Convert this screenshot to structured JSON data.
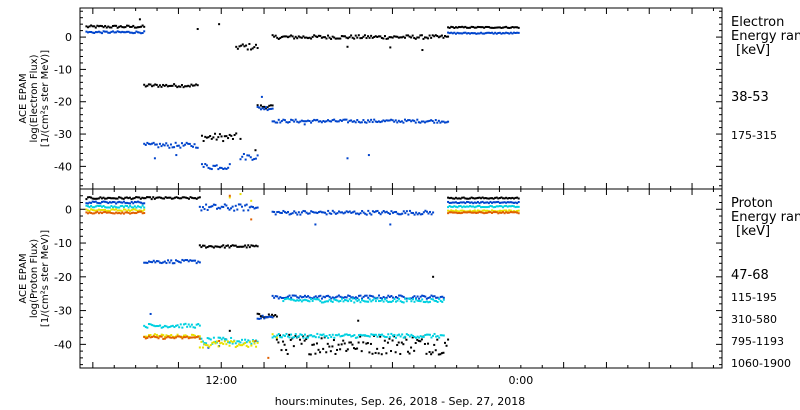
{
  "chart_data": [
    {
      "type": "scatter",
      "ylabel_lines": [
        "ACE EPAM",
        "log(Electron Flux)",
        "[1/(cm²s ster MeV)]"
      ],
      "ylim": [
        -47,
        9
      ],
      "yticks": [
        0,
        -10,
        -20,
        -30,
        -40
      ],
      "xlim": [
        0,
        30
      ],
      "legend_title": [
        "Electron",
        "Energy ran",
        "[keV]"
      ],
      "series": [
        {
          "name": "38-53",
          "color": "#000000",
          "segments": [
            {
              "x0": 0.3,
              "x1": 3.0,
              "y": 3.2,
              "jitter": 0.4
            },
            {
              "x0": 3.0,
              "x1": 5.5,
              "y": -15.0,
              "jitter": 0.5
            },
            {
              "x0": 5.7,
              "x1": 7.3,
              "y": -31.0,
              "jitter": 1.2
            },
            {
              "x0": 7.3,
              "x1": 8.3,
              "y": -3.0,
              "jitter": 1.0
            },
            {
              "x0": 8.3,
              "x1": 9.0,
              "y": -21.5,
              "jitter": 0.6
            },
            {
              "x0": 9.0,
              "x1": 17.2,
              "y": 0.0,
              "jitter": 0.6
            },
            {
              "x0": 17.2,
              "x1": 20.5,
              "y": 3.0,
              "jitter": 0.2
            }
          ],
          "extra_points": [
            [
              2.8,
              5.5
            ],
            [
              5.5,
              2.5
            ],
            [
              6.5,
              4.0
            ],
            [
              7.5,
              -31.5
            ],
            [
              8.2,
              -35.0
            ],
            [
              12.5,
              -3.0
            ],
            [
              14.5,
              -3.2
            ],
            [
              16.0,
              -4.0
            ]
          ]
        },
        {
          "name": "175-315",
          "color": "#0044cc",
          "segments": [
            {
              "x0": 0.3,
              "x1": 3.0,
              "y": 1.5,
              "jitter": 0.3
            },
            {
              "x0": 3.0,
              "x1": 5.5,
              "y": -33.5,
              "jitter": 0.8
            },
            {
              "x0": 5.7,
              "x1": 7.0,
              "y": -40.0,
              "jitter": 1.0
            },
            {
              "x0": 7.5,
              "x1": 8.3,
              "y": -37.0,
              "jitter": 1.0
            },
            {
              "x0": 8.3,
              "x1": 9.0,
              "y": -22.0,
              "jitter": 0.6
            },
            {
              "x0": 9.0,
              "x1": 17.2,
              "y": -26.0,
              "jitter": 0.5
            },
            {
              "x0": 17.2,
              "x1": 20.5,
              "y": 1.2,
              "jitter": 0.2
            }
          ],
          "extra_points": [
            [
              3.5,
              -37.5
            ],
            [
              4.5,
              -36.5
            ],
            [
              10.5,
              -27.0
            ],
            [
              12.5,
              -37.5
            ],
            [
              13.5,
              -36.5
            ],
            [
              8.5,
              -18.5
            ]
          ]
        }
      ]
    },
    {
      "type": "scatter",
      "ylabel_lines": [
        "ACE EPAM",
        "log(Proton Flux)",
        "[1/(cm²s ster MeV)]"
      ],
      "xlabel": "hours:minutes, Sep. 26, 2018 - Sep. 27, 2018",
      "ylim": [
        -47,
        6
      ],
      "yticks": [
        0,
        -10,
        -20,
        -30,
        -40
      ],
      "xlim": [
        0,
        30
      ],
      "xticks": [
        {
          "x": 6.6,
          "label": "12:00"
        },
        {
          "x": 20.6,
          "label": "0:00"
        }
      ],
      "legend_title": [
        "Proton",
        "Energy ran",
        "[keV]"
      ],
      "series": [
        {
          "name": "47-68",
          "color": "#000000",
          "segments": [
            {
              "x0": 0.3,
              "x1": 5.6,
              "y": 3.3,
              "jitter": 0.3
            },
            {
              "x0": 5.6,
              "x1": 8.3,
              "y": -11.0,
              "jitter": 0.4
            },
            {
              "x0": 8.3,
              "x1": 9.2,
              "y": -31.5,
              "jitter": 0.6
            },
            {
              "x0": 9.2,
              "x1": 17.2,
              "y": -40.0,
              "jitter": 3.0
            },
            {
              "x0": 17.2,
              "x1": 20.5,
              "y": 3.3,
              "jitter": 0.2
            }
          ],
          "extra_points": [
            [
              6.8,
              -38.5
            ],
            [
              7.0,
              -36.0
            ],
            [
              16.5,
              -20.0
            ],
            [
              13.0,
              -33.0
            ]
          ]
        },
        {
          "name": "115-195",
          "color": "#0044cc",
          "segments": [
            {
              "x0": 0.3,
              "x1": 3.0,
              "y": 2.0,
              "jitter": 0.3
            },
            {
              "x0": 3.0,
              "x1": 5.6,
              "y": -15.5,
              "jitter": 0.5
            },
            {
              "x0": 5.6,
              "x1": 8.3,
              "y": 0.5,
              "jitter": 1.0
            },
            {
              "x0": 8.3,
              "x1": 9.0,
              "y": -32.0,
              "jitter": 0.5
            },
            {
              "x0": 9.0,
              "x1": 16.5,
              "y": -1.0,
              "jitter": 0.6
            },
            {
              "x0": 9.0,
              "x1": 17.0,
              "y": -26.0,
              "jitter": 0.5
            },
            {
              "x0": 17.2,
              "x1": 20.5,
              "y": 2.0,
              "jitter": 0.2
            }
          ],
          "extra_points": [
            [
              3.3,
              -31.0
            ],
            [
              6.0,
              -41.0
            ],
            [
              6.5,
              -40.5
            ],
            [
              11.0,
              -4.5
            ],
            [
              14.5,
              -4.5
            ]
          ]
        },
        {
          "name": "310-580",
          "color": "#00d0e0",
          "segments": [
            {
              "x0": 0.3,
              "x1": 3.0,
              "y": 0.8,
              "jitter": 0.3
            },
            {
              "x0": 3.0,
              "x1": 5.6,
              "y": -34.5,
              "jitter": 0.6
            },
            {
              "x0": 5.6,
              "x1": 8.3,
              "y": -39.0,
              "jitter": 1.0
            },
            {
              "x0": 9.0,
              "x1": 17.0,
              "y": -37.5,
              "jitter": 0.6
            },
            {
              "x0": 9.5,
              "x1": 17.0,
              "y": -27.0,
              "jitter": 0.6
            },
            {
              "x0": 17.2,
              "x1": 20.5,
              "y": 0.8,
              "jitter": 0.2
            }
          ],
          "extra_points": [
            [
              5.8,
              -40.0
            ],
            [
              7.0,
              -39.5
            ]
          ]
        },
        {
          "name": "795-1193",
          "color": "#e8e000",
          "segments": [
            {
              "x0": 0.3,
              "x1": 3.0,
              "y": -0.3,
              "jitter": 0.3
            },
            {
              "x0": 3.0,
              "x1": 5.6,
              "y": -37.5,
              "jitter": 0.4
            },
            {
              "x0": 5.6,
              "x1": 8.3,
              "y": -40.0,
              "jitter": 1.0
            },
            {
              "x0": 17.2,
              "x1": 20.5,
              "y": -0.5,
              "jitter": 0.2
            }
          ],
          "extra_points": [
            [
              7.0,
              3.5
            ],
            [
              7.5,
              4.5
            ],
            [
              8.0,
              2.5
            ],
            [
              9.0,
              -37.0
            ],
            [
              9.2,
              -38.0
            ],
            [
              3.5,
              -37.0
            ]
          ]
        },
        {
          "name": "1060-1900",
          "color": "#e06000",
          "segments": [
            {
              "x0": 0.3,
              "x1": 3.0,
              "y": -1.0,
              "jitter": 0.3
            },
            {
              "x0": 3.0,
              "x1": 5.6,
              "y": -38.0,
              "jitter": 0.4
            },
            {
              "x0": 17.2,
              "x1": 20.5,
              "y": -1.0,
              "jitter": 0.2
            }
          ],
          "extra_points": [
            [
              7.0,
              4.0
            ],
            [
              8.0,
              -3.0
            ],
            [
              8.2,
              -39.0
            ],
            [
              8.8,
              -44.0
            ],
            [
              6.5,
              -39.0
            ]
          ]
        }
      ]
    }
  ]
}
